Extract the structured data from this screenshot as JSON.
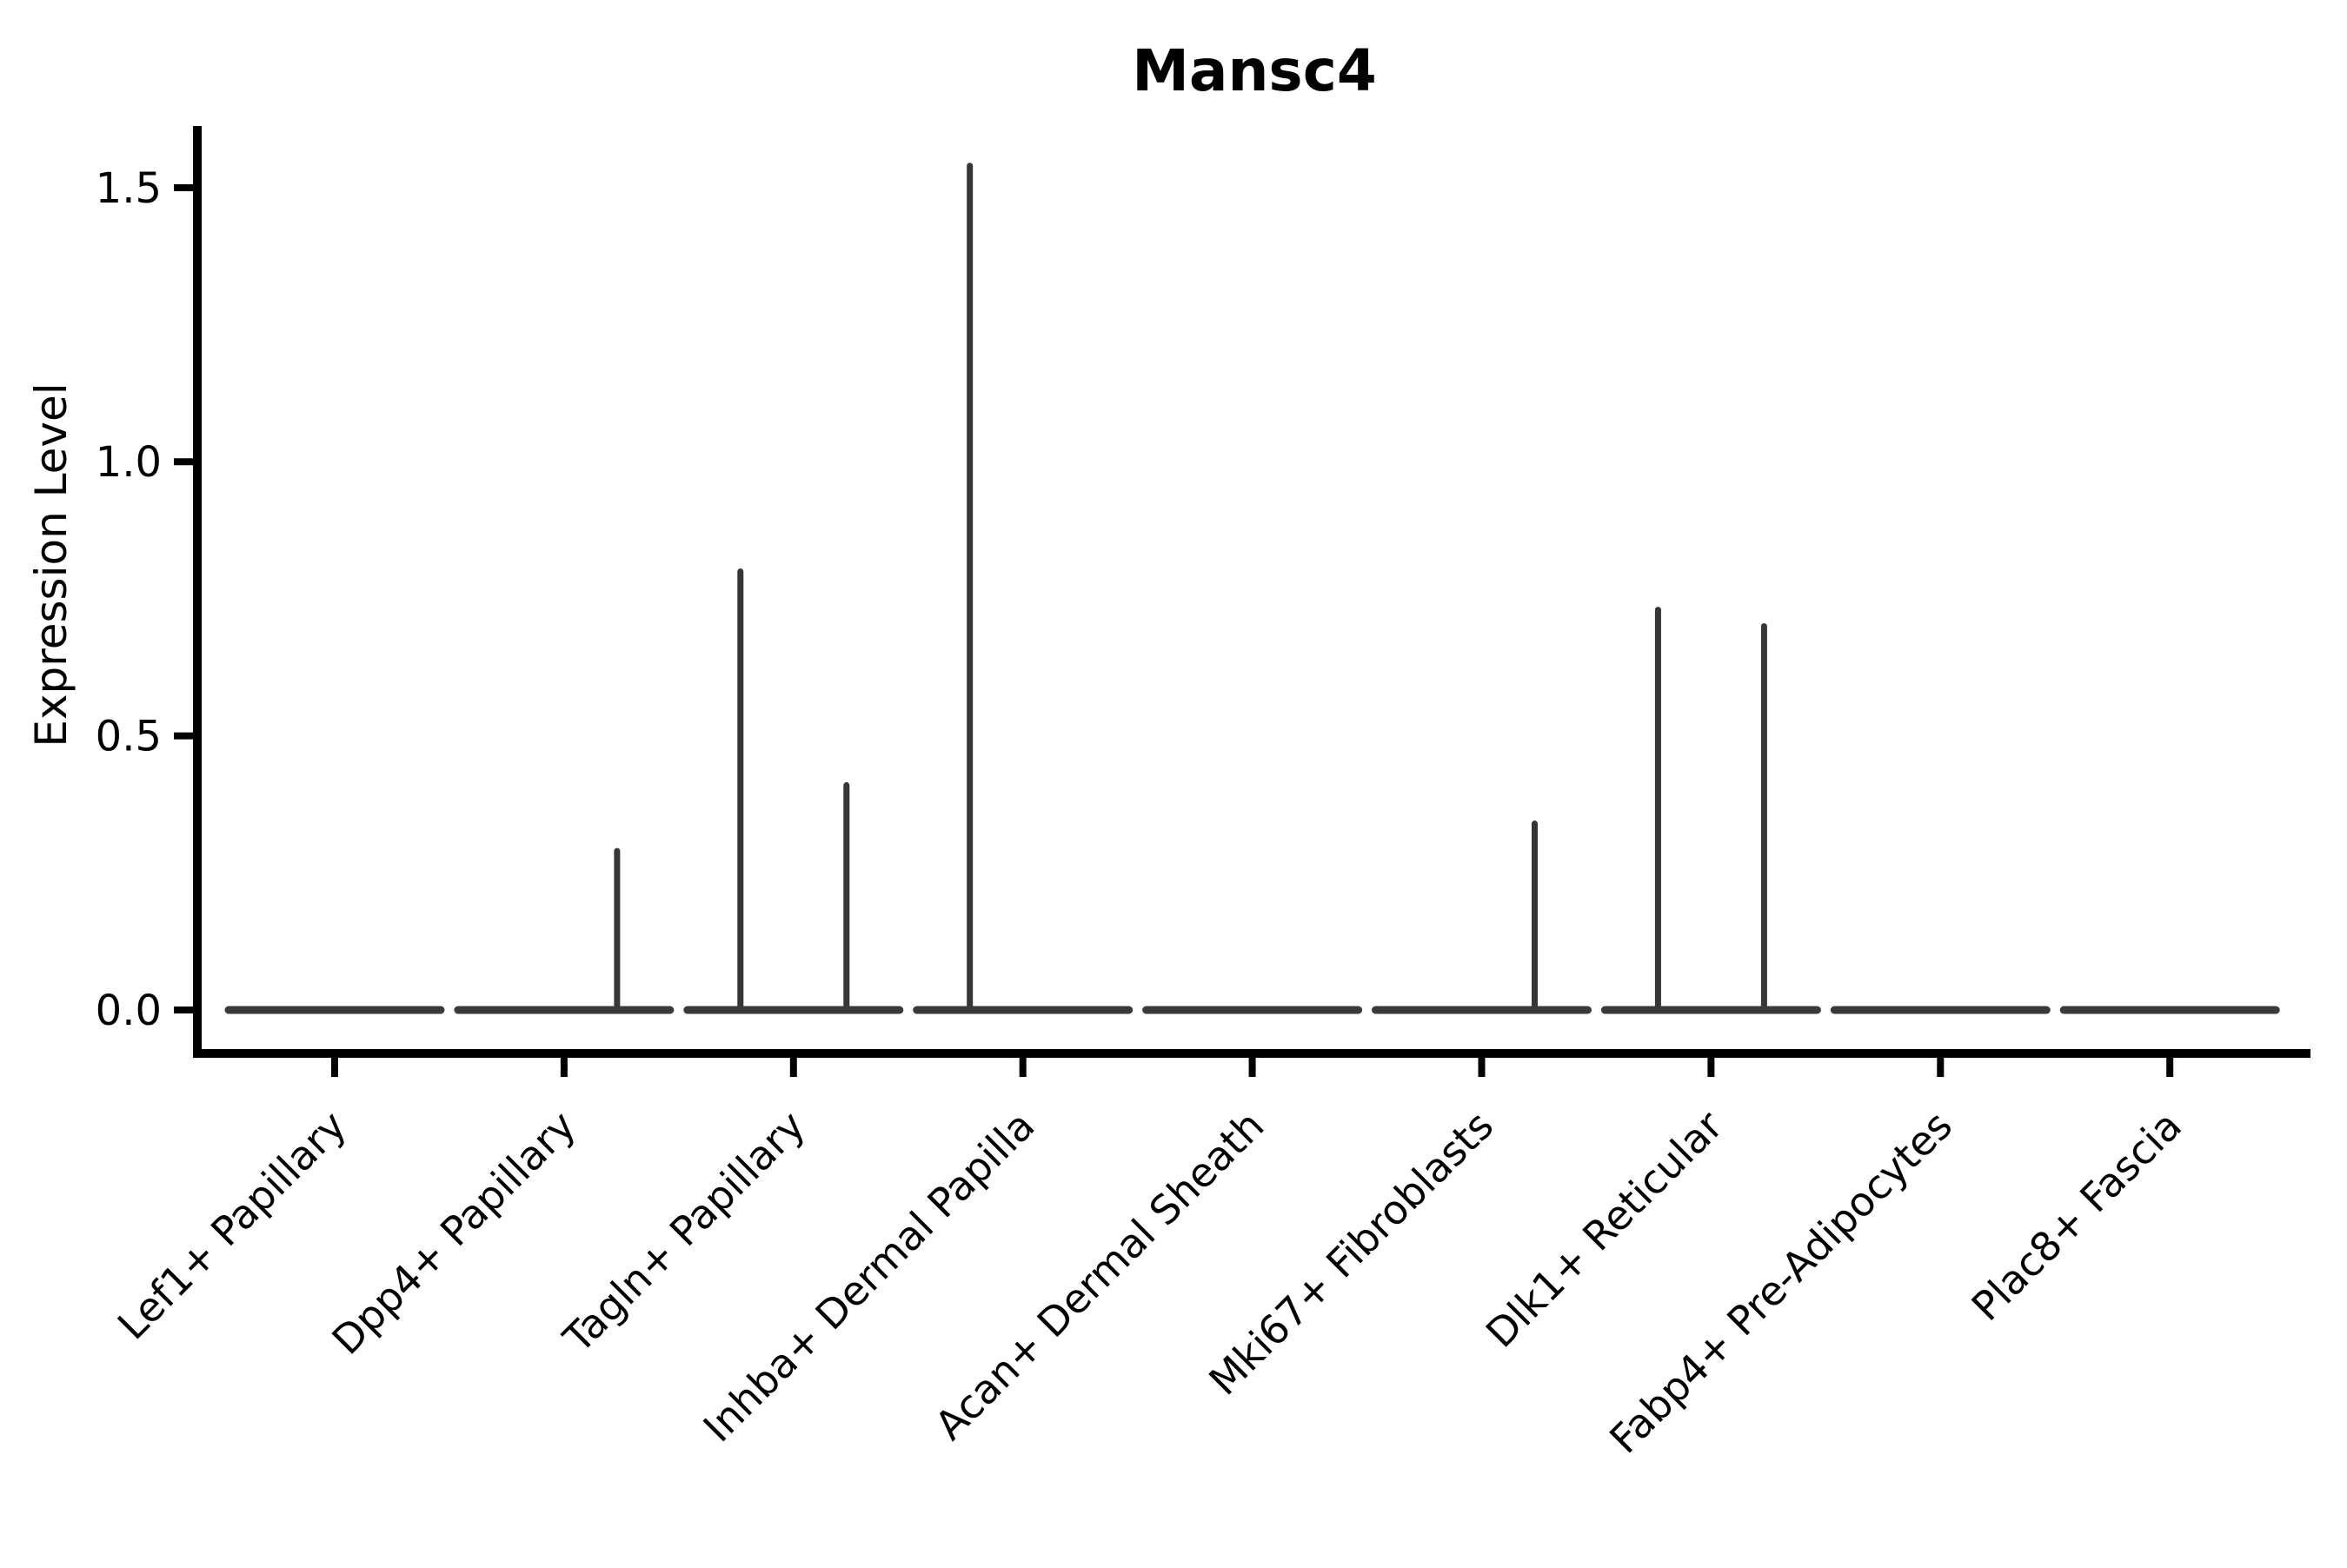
{
  "title": "Mansc4",
  "y_axis": {
    "label": "Expression Level"
  },
  "chart_data": {
    "type": "violin",
    "title": "Mansc4",
    "xlabel": "",
    "ylabel": "Expression Level",
    "ylim": [
      -0.08,
      1.62
    ],
    "yticks": [
      0.0,
      0.5,
      1.0,
      1.5
    ],
    "ytick_labels": [
      "0.0",
      "0.5",
      "1.0",
      "1.5"
    ],
    "categories": [
      "Lef1+ Papillary",
      "Dpp4+ Papillary",
      "Tagln+ Papillary",
      "Inhba+ Dermal Papilla",
      "Acan+ Dermal Sheath",
      "Mki67+ Fibroblasts",
      "Dlk1+ Reticular",
      "Fabp4+ Pre-Adipocytes",
      "Plac8+ Fascia"
    ],
    "violins": [
      {
        "category": "Lef1+ Papillary",
        "baseline_value": 0,
        "spikes": []
      },
      {
        "category": "Dpp4+ Papillary",
        "baseline_value": 0,
        "spikes": [
          {
            "side": "right",
            "max_expression": 0.29
          }
        ]
      },
      {
        "category": "Tagln+ Papillary",
        "baseline_value": 0,
        "spikes": [
          {
            "side": "left",
            "max_expression": 0.8
          },
          {
            "side": "right",
            "max_expression": 0.41
          }
        ]
      },
      {
        "category": "Inhba+ Dermal Papilla",
        "baseline_value": 0,
        "spikes": [
          {
            "side": "left",
            "max_expression": 1.54
          }
        ]
      },
      {
        "category": "Acan+ Dermal Sheath",
        "baseline_value": 0,
        "spikes": []
      },
      {
        "category": "Mki67+ Fibroblasts",
        "baseline_value": 0,
        "spikes": [
          {
            "side": "right",
            "max_expression": 0.34
          }
        ]
      },
      {
        "category": "Dlk1+ Reticular",
        "baseline_value": 0,
        "spikes": [
          {
            "side": "left",
            "max_expression": 0.73
          },
          {
            "side": "right",
            "max_expression": 0.7
          }
        ]
      },
      {
        "category": "Fabp4+ Pre-Adipocytes",
        "baseline_value": 0,
        "spikes": []
      },
      {
        "category": "Plac8+ Fascia",
        "baseline_value": 0,
        "spikes": []
      }
    ],
    "layout_hints": {
      "grid": false,
      "legend": "none",
      "violin_width_units": 0.92,
      "dodge_offset_units": 0.23,
      "x_label_rotation_deg": 45,
      "spines_shown": [
        "left",
        "bottom"
      ]
    },
    "colors": {
      "background": "#ffffff",
      "axis": "#000000",
      "text": "#000000",
      "violin_line": "#3a3a3a",
      "spike_line": "#363636"
    }
  }
}
